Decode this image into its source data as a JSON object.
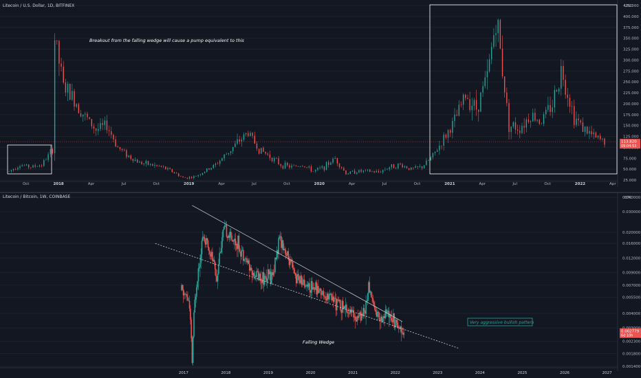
{
  "top_chart": {
    "symbol_line": "Litecoin / U.S. Dollar, 1D, BITFINEX",
    "currency": "USD",
    "annotation": "Breakout from the falling wedge will cause a pump equivalent to this",
    "price_badge": "113.820",
    "countdown_badge": "09:04:53",
    "colors": {
      "up": "#26a69a",
      "down": "#ef5350",
      "badge": "#ef5350"
    },
    "x_ticks": [
      "Oct",
      "2018",
      "Apr",
      "Jul",
      "Oct",
      "2019",
      "Apr",
      "Jul",
      "Oct",
      "2020",
      "Apr",
      "Jul",
      "Oct",
      "2021",
      "Apr",
      "Jul",
      "Oct",
      "2022",
      "Apr"
    ],
    "y_ticks": [
      "425.000",
      "400.000",
      "375.000",
      "350.000",
      "325.000",
      "300.000",
      "275.000",
      "250.000",
      "225.000",
      "200.000",
      "175.000",
      "150.000",
      "125.000",
      "100.000",
      "75.000",
      "50.000",
      "25.000"
    ]
  },
  "bottom_chart": {
    "symbol_line": "Litecoin / Bitcoin, 1W, COINBASE",
    "currency": "BTC",
    "annotation_wedge": "Falling Wedge",
    "annotation_bullish": "Very aggressive bullish pattern",
    "price_badge": "0.002779",
    "countdown_badge": "6d 10h",
    "x_ticks": [
      "2017",
      "2018",
      "2019",
      "2020",
      "2021",
      "2022",
      "2023",
      "2024",
      "2025",
      "2026",
      "2027"
    ],
    "y_ticks": [
      "0.040000",
      "0.030000",
      "0.020000",
      "0.016000",
      "0.012000",
      "0.009000",
      "0.007000",
      "0.005500",
      "0.004000",
      "0.003000",
      "0.002300",
      "0.001800",
      "0.001400"
    ]
  },
  "chart_data": [
    {
      "type": "line",
      "title": "Litecoin / U.S. Dollar, 1D, BITFINEX",
      "x": [
        "2017-08",
        "2017-09",
        "2017-10",
        "2017-11",
        "2017-12",
        "2017-12-19",
        "2018-01",
        "2018-02",
        "2018-03",
        "2018-04",
        "2018-05",
        "2018-06",
        "2018-07",
        "2018-08",
        "2018-09",
        "2018-10",
        "2018-11",
        "2018-12",
        "2019-01",
        "2019-02",
        "2019-03",
        "2019-04",
        "2019-05",
        "2019-06",
        "2019-07",
        "2019-08",
        "2019-09",
        "2019-10",
        "2019-11",
        "2019-12",
        "2020-01",
        "2020-02",
        "2020-03",
        "2020-04",
        "2020-05",
        "2020-06",
        "2020-07",
        "2020-08",
        "2020-09",
        "2020-10",
        "2020-11",
        "2020-12",
        "2021-01",
        "2021-02",
        "2021-03",
        "2021-04",
        "2021-05-10",
        "2021-06",
        "2021-07",
        "2021-08",
        "2021-09",
        "2021-10",
        "2021-11-10",
        "2021-12",
        "2022-01",
        "2022-02",
        "2022-03"
      ],
      "series": [
        {
          "values": [
            45,
            60,
            55,
            60,
            95,
            360,
            240,
            210,
            170,
            140,
            150,
            100,
            80,
            65,
            60,
            55,
            45,
            30,
            32,
            45,
            60,
            85,
            110,
            135,
            95,
            80,
            60,
            55,
            60,
            45,
            55,
            75,
            40,
            45,
            45,
            43,
            55,
            60,
            50,
            55,
            80,
            120,
            160,
            220,
            190,
            260,
            400,
            150,
            145,
            175,
            160,
            200,
            280,
            170,
            140,
            120,
            113
          ]
        }
      ],
      "ylim": [
        25,
        425
      ]
    },
    {
      "type": "line",
      "title": "Litecoin / Bitcoin, 1W, COINBASE",
      "x": [
        "2016-12",
        "2017-02",
        "2017-03",
        "2017-05",
        "2017-06",
        "2017-08",
        "2017-10",
        "2017-12",
        "2018-02",
        "2018-04",
        "2018-06",
        "2018-08",
        "2018-10",
        "2018-12",
        "2019-02",
        "2019-04",
        "2019-06",
        "2019-08",
        "2019-10",
        "2019-12",
        "2020-02",
        "2020-04",
        "2020-06",
        "2020-08",
        "2020-10",
        "2020-12",
        "2021-02",
        "2021-04",
        "2021-05",
        "2021-07",
        "2021-09",
        "2021-11",
        "2022-01",
        "2022-03"
      ],
      "series": [
        {
          "values": [
            0.0063,
            0.0052,
            0.0013,
            0.011,
            0.018,
            0.014,
            0.008,
            0.021,
            0.018,
            0.016,
            0.012,
            0.009,
            0.0085,
            0.008,
            0.009,
            0.018,
            0.012,
            0.0085,
            0.0075,
            0.007,
            0.0067,
            0.006,
            0.0055,
            0.005,
            0.0045,
            0.004,
            0.0038,
            0.0043,
            0.0068,
            0.004,
            0.0037,
            0.0042,
            0.0033,
            0.00278
          ]
        }
      ],
      "ylim": [
        0.0014,
        0.04
      ]
    }
  ]
}
